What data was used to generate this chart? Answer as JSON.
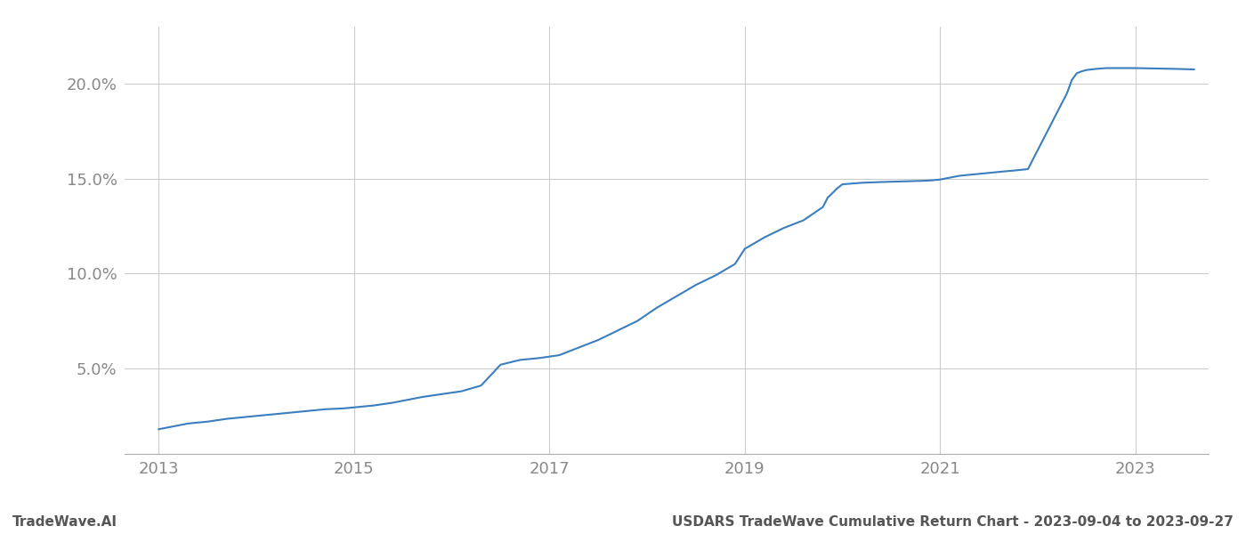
{
  "footer_left": "TradeWave.AI",
  "footer_right": "USDARS TradeWave Cumulative Return Chart - 2023-09-04 to 2023-09-27",
  "line_color": "#3a7ebf",
  "line_width": 1.5,
  "background_color": "#ffffff",
  "grid_color": "#cccccc",
  "x_data": [
    2013.0,
    2013.15,
    2013.3,
    2013.5,
    2013.7,
    2013.9,
    2014.1,
    2014.3,
    2014.5,
    2014.7,
    2014.9,
    2015.0,
    2015.2,
    2015.4,
    2015.55,
    2015.7,
    2015.9,
    2016.1,
    2016.3,
    2016.5,
    2016.7,
    2016.9,
    2017.1,
    2017.3,
    2017.5,
    2017.7,
    2017.9,
    2018.1,
    2018.3,
    2018.5,
    2018.7,
    2018.9,
    2019.0,
    2019.2,
    2019.4,
    2019.6,
    2019.8,
    2019.85,
    2019.95,
    2020.0,
    2020.2,
    2020.4,
    2020.6,
    2020.8,
    2020.9,
    2021.0,
    2021.05,
    2021.1,
    2021.15,
    2021.2,
    2021.4,
    2021.6,
    2021.7,
    2021.75,
    2021.9,
    2022.1,
    2022.2,
    2022.3,
    2022.35,
    2022.4,
    2022.45,
    2022.5,
    2022.6,
    2022.65,
    2022.7,
    2023.0,
    2023.2,
    2023.4,
    2023.6
  ],
  "y_data": [
    1.8,
    1.95,
    2.1,
    2.2,
    2.35,
    2.45,
    2.55,
    2.65,
    2.75,
    2.85,
    2.9,
    2.95,
    3.05,
    3.2,
    3.35,
    3.5,
    3.65,
    3.8,
    4.1,
    5.2,
    5.45,
    5.55,
    5.7,
    6.1,
    6.5,
    7.0,
    7.5,
    8.2,
    8.8,
    9.4,
    9.9,
    10.5,
    11.3,
    11.9,
    12.4,
    12.8,
    13.5,
    14.0,
    14.5,
    14.7,
    14.78,
    14.82,
    14.85,
    14.88,
    14.9,
    14.95,
    15.0,
    15.05,
    15.1,
    15.15,
    15.25,
    15.35,
    15.4,
    15.42,
    15.5,
    17.5,
    18.5,
    19.5,
    20.2,
    20.55,
    20.65,
    20.72,
    20.78,
    20.8,
    20.82,
    20.82,
    20.8,
    20.78,
    20.75
  ],
  "yticks": [
    5.0,
    10.0,
    15.0,
    20.0
  ],
  "ytick_labels": [
    "5.0%",
    "10.0%",
    "15.0%",
    "20.0%"
  ],
  "xticks": [
    2013,
    2015,
    2017,
    2019,
    2021,
    2023
  ],
  "xlim": [
    2012.65,
    2023.75
  ],
  "ylim": [
    0.5,
    23.0
  ],
  "tick_color": "#888888",
  "tick_fontsize": 13,
  "footer_fontsize": 11
}
